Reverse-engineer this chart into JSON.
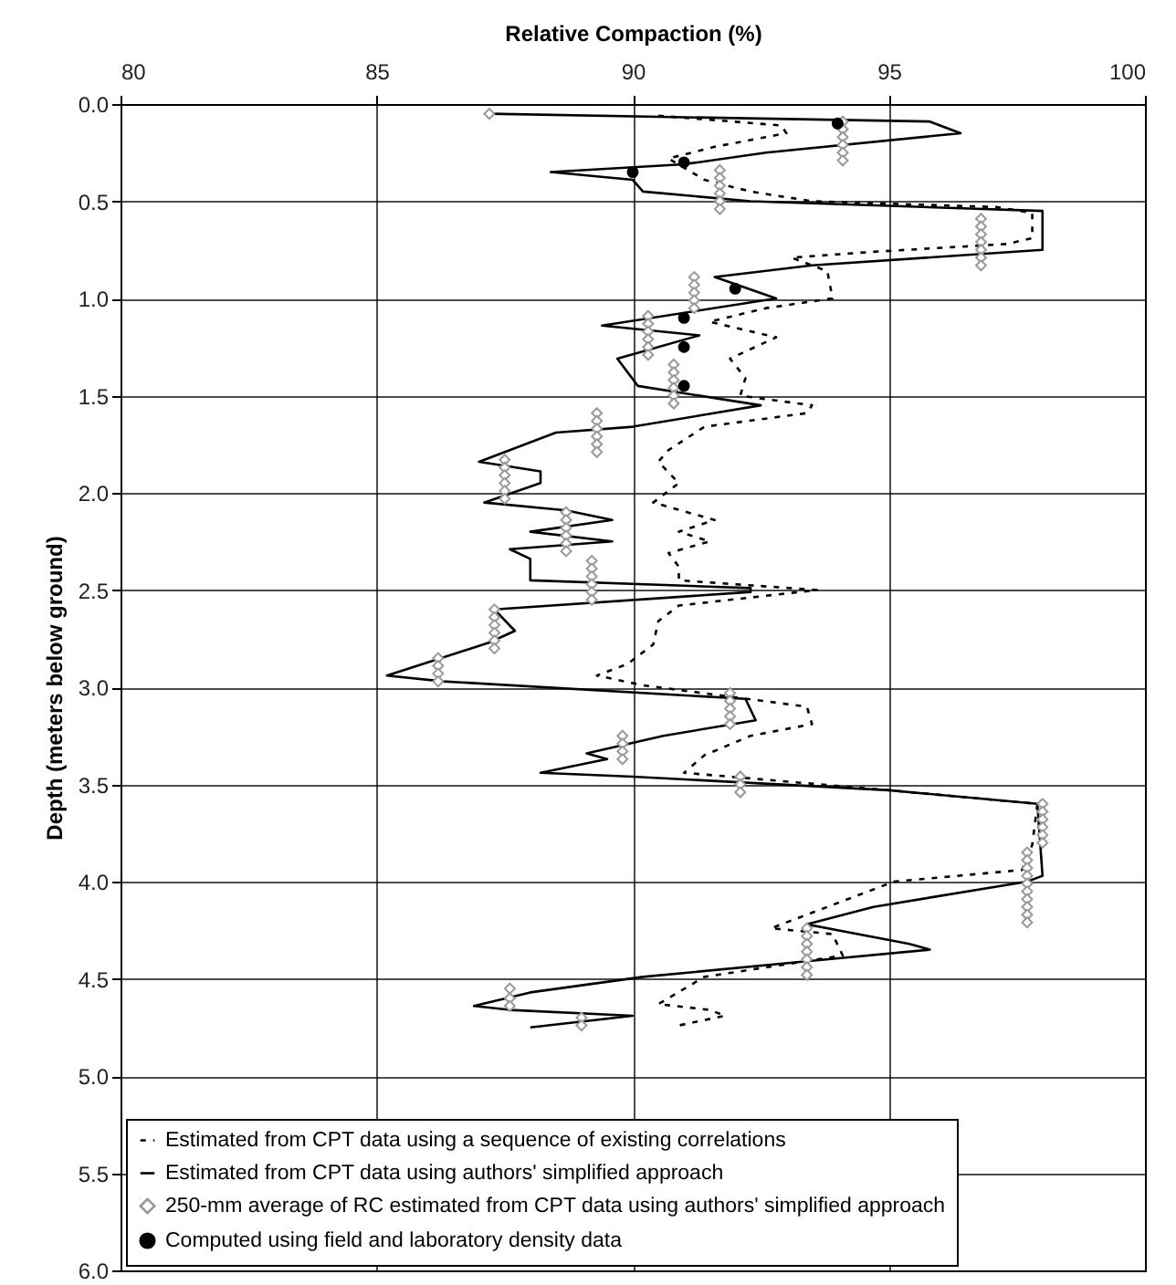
{
  "chart_data": {
    "type": "line",
    "xlabel": "Relative Compaction (%)",
    "ylabel": "Depth (meters below ground)",
    "xlim": [
      80,
      100
    ],
    "xticks": [
      80,
      85,
      90,
      95,
      100
    ],
    "ylim": [
      6,
      0
    ],
    "yticks": [
      {
        "value": 0,
        "label": "0.0"
      },
      {
        "value": 0.5,
        "label": "0.5"
      },
      {
        "value": 1,
        "label": "1.0"
      },
      {
        "value": 1.5,
        "label": "1.5"
      },
      {
        "value": 2,
        "label": "2.0"
      },
      {
        "value": 2.5,
        "label": "2.5"
      },
      {
        "value": 3,
        "label": "3.0"
      },
      {
        "value": 3.5,
        "label": "3.5"
      },
      {
        "value": 4,
        "label": "4.0"
      },
      {
        "value": 4.5,
        "label": "4.5"
      },
      {
        "value": 5,
        "label": "5.0"
      },
      {
        "value": 5.5,
        "label": "5.5"
      },
      {
        "value": 6,
        "label": "6.0"
      }
    ],
    "grid": true,
    "legend": "bottom left",
    "series": [
      {
        "name": "Estimated from CPT data using a sequence of existing correlations",
        "line_style": "dashed",
        "marker": "none",
        "color": "#000000",
        "x": [
          90.5,
          92.9,
          93.0,
          91.6,
          90.7,
          91.4,
          92.3,
          93.5,
          97.1,
          97.8,
          97.8,
          97.3,
          94.7,
          93.1,
          93.8,
          93.9,
          92.6,
          91.5,
          92.8,
          91.9,
          92.2,
          92.1,
          93.5,
          93.4,
          91.4,
          90.7,
          90.5,
          90.9,
          90.4,
          91.6,
          90.9,
          91.5,
          90.7,
          90.9,
          90.9,
          93.6,
          90.9,
          90.5,
          90.4,
          89.9,
          89.3,
          90.2,
          93.4,
          93.5,
          92.3,
          91.4,
          91.0,
          95.0,
          97.9,
          97.8,
          97.6,
          95.1,
          92.7,
          93.9,
          94.1,
          91.4,
          90.5,
          91.5,
          91.8,
          90.9
        ],
        "values": [
          0.06,
          0.11,
          0.15,
          0.22,
          0.28,
          0.39,
          0.45,
          0.5,
          0.53,
          0.56,
          0.69,
          0.72,
          0.76,
          0.79,
          0.86,
          1.0,
          1.05,
          1.12,
          1.2,
          1.31,
          1.41,
          1.5,
          1.55,
          1.59,
          1.66,
          1.78,
          1.84,
          1.95,
          2.05,
          2.14,
          2.2,
          2.25,
          2.31,
          2.38,
          2.45,
          2.5,
          2.58,
          2.66,
          2.78,
          2.88,
          2.94,
          2.99,
          3.1,
          3.19,
          3.25,
          3.35,
          3.44,
          3.53,
          3.6,
          3.81,
          3.94,
          4.0,
          4.24,
          4.27,
          4.38,
          4.49,
          4.63,
          4.66,
          4.69,
          4.74
        ]
      },
      {
        "name": "Estimated from CPT data using authors' simplified approach",
        "line_style": "solid",
        "marker": "none",
        "color": "#000000",
        "x": [
          87.2,
          95.8,
          96.4,
          92.6,
          91.0,
          88.4,
          90.0,
          90.2,
          92.3,
          98.0,
          98.0,
          93.5,
          91.6,
          92.8,
          89.4,
          91.3,
          89.7,
          90.1,
          92.5,
          90.0,
          88.5,
          87.0,
          88.2,
          88.2,
          87.1,
          88.7,
          89.6,
          88.0,
          89.6,
          87.6,
          88.0,
          88.0,
          92.3,
          92.3,
          87.3,
          87.7,
          87.2,
          85.2,
          86.3,
          92.2,
          92.4,
          90.6,
          89.1,
          89.5,
          88.2,
          90.0,
          95.0,
          97.9,
          98.0,
          97.7,
          94.7,
          93.4,
          95.4,
          95.8,
          93.4,
          90.2,
          88.0,
          86.9,
          87.6,
          90.0,
          88.0
        ],
        "values": [
          0.05,
          0.09,
          0.15,
          0.25,
          0.31,
          0.35,
          0.39,
          0.45,
          0.5,
          0.55,
          0.75,
          0.83,
          0.89,
          1.0,
          1.14,
          1.19,
          1.31,
          1.45,
          1.55,
          1.66,
          1.69,
          1.84,
          1.89,
          1.95,
          2.05,
          2.09,
          2.14,
          2.2,
          2.25,
          2.29,
          2.34,
          2.45,
          2.49,
          2.51,
          2.6,
          2.71,
          2.77,
          2.94,
          2.97,
          3.06,
          3.17,
          3.25,
          3.34,
          3.37,
          3.44,
          3.46,
          3.53,
          3.6,
          3.97,
          4.0,
          4.13,
          4.22,
          4.32,
          4.35,
          4.41,
          4.49,
          4.57,
          4.64,
          4.66,
          4.69,
          4.75
        ]
      },
      {
        "name": "250-mm average of RC estimated from CPT data using authors' simplified approach",
        "type": "scatter",
        "marker": "diamond",
        "color": "#999999",
        "x": [
          87.2,
          94.1,
          94.1,
          94.1,
          94.1,
          94.1,
          94.1,
          91.7,
          91.7,
          91.7,
          91.7,
          91.7,
          91.7,
          96.8,
          96.8,
          96.8,
          96.8,
          96.8,
          96.8,
          96.8,
          91.2,
          91.2,
          91.2,
          91.2,
          91.2,
          90.3,
          90.3,
          90.3,
          90.3,
          90.3,
          90.3,
          90.8,
          90.8,
          90.8,
          90.8,
          90.8,
          90.8,
          89.3,
          89.3,
          89.3,
          89.3,
          89.3,
          89.3,
          87.5,
          87.5,
          87.5,
          87.5,
          87.5,
          87.5,
          88.7,
          88.7,
          88.7,
          88.7,
          88.7,
          88.7,
          89.2,
          89.2,
          89.2,
          89.2,
          89.2,
          89.2,
          87.3,
          87.3,
          87.3,
          87.3,
          87.3,
          87.3,
          86.2,
          86.2,
          86.2,
          86.2,
          91.9,
          91.9,
          91.9,
          91.9,
          91.9,
          89.8,
          89.8,
          89.8,
          89.8,
          92.1,
          92.1,
          92.1,
          98.0,
          98.0,
          98.0,
          98.0,
          98.0,
          98.0,
          97.7,
          97.7,
          97.7,
          97.7,
          97.7,
          97.7,
          97.7,
          97.7,
          97.7,
          97.7,
          93.4,
          93.4,
          93.4,
          93.4,
          93.4,
          93.4,
          93.4,
          87.6,
          87.6,
          87.6,
          89.0,
          89.0
        ],
        "values": [
          0.05,
          0.09,
          0.13,
          0.17,
          0.21,
          0.25,
          0.29,
          0.34,
          0.38,
          0.42,
          0.46,
          0.5,
          0.54,
          0.59,
          0.63,
          0.67,
          0.71,
          0.75,
          0.79,
          0.83,
          0.89,
          0.93,
          0.97,
          1.01,
          1.05,
          1.09,
          1.13,
          1.17,
          1.21,
          1.25,
          1.29,
          1.34,
          1.38,
          1.42,
          1.46,
          1.5,
          1.54,
          1.59,
          1.63,
          1.67,
          1.71,
          1.75,
          1.79,
          1.83,
          1.87,
          1.91,
          1.95,
          1.99,
          2.03,
          2.1,
          2.14,
          2.18,
          2.22,
          2.26,
          2.3,
          2.35,
          2.39,
          2.43,
          2.47,
          2.51,
          2.55,
          2.6,
          2.64,
          2.68,
          2.72,
          2.76,
          2.8,
          2.85,
          2.89,
          2.93,
          2.97,
          3.03,
          3.07,
          3.11,
          3.15,
          3.19,
          3.25,
          3.29,
          3.33,
          3.37,
          3.46,
          3.5,
          3.54,
          3.6,
          3.64,
          3.68,
          3.72,
          3.76,
          3.8,
          3.85,
          3.89,
          3.93,
          3.97,
          4.01,
          4.05,
          4.09,
          4.13,
          4.17,
          4.21,
          4.24,
          4.28,
          4.32,
          4.36,
          4.4,
          4.44,
          4.48,
          4.55,
          4.6,
          4.64,
          4.7,
          4.74
        ]
      },
      {
        "name": "Computed using field and laboratory density data",
        "type": "scatter",
        "marker": "circle",
        "color": "#000000",
        "x": [
          94.0,
          91.0,
          90.0,
          92.0,
          91.0,
          91.0,
          91.0
        ],
        "values": [
          0.1,
          0.3,
          0.35,
          0.95,
          1.1,
          1.25,
          1.45
        ]
      }
    ]
  }
}
